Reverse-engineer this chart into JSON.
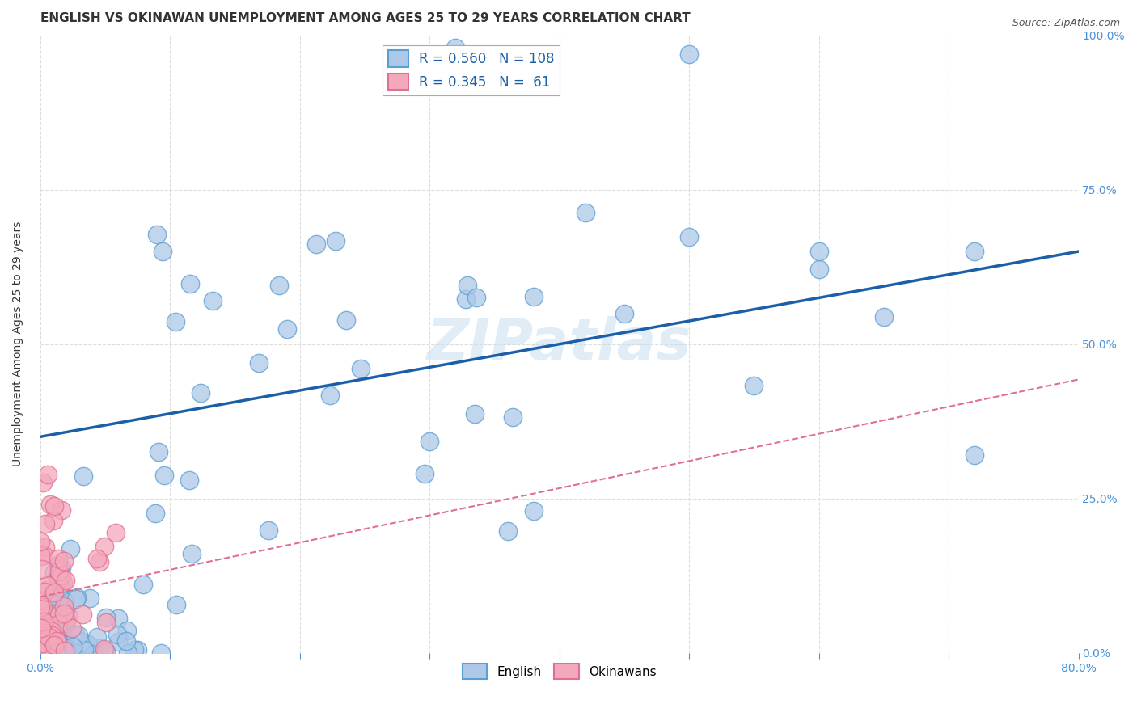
{
  "title": "ENGLISH VS OKINAWAN UNEMPLOYMENT AMONG AGES 25 TO 29 YEARS CORRELATION CHART",
  "source": "Source: ZipAtlas.com",
  "ylabel": "Unemployment Among Ages 25 to 29 years",
  "legend_bottom": [
    "English",
    "Okinawans"
  ],
  "R_english": 0.56,
  "N_english": 108,
  "R_okinawan": 0.345,
  "N_okinawan": 61,
  "english_color": "#adc8e8",
  "english_edge_color": "#5a9fd4",
  "english_line_color": "#1a5fa8",
  "okinawan_color": "#f4a8bc",
  "okinawan_edge_color": "#e07090",
  "okinawan_line_color": "#e07090",
  "watermark": "ZIPatlas",
  "xlim": [
    0.0,
    0.8
  ],
  "ylim": [
    0.0,
    1.0
  ],
  "background_color": "#ffffff",
  "grid_color": "#dddddd",
  "title_fontsize": 11,
  "axis_label_fontsize": 10,
  "tick_fontsize": 10,
  "legend_fontsize": 12,
  "eng_line_start_y": 0.35,
  "eng_line_end_y": 0.65
}
